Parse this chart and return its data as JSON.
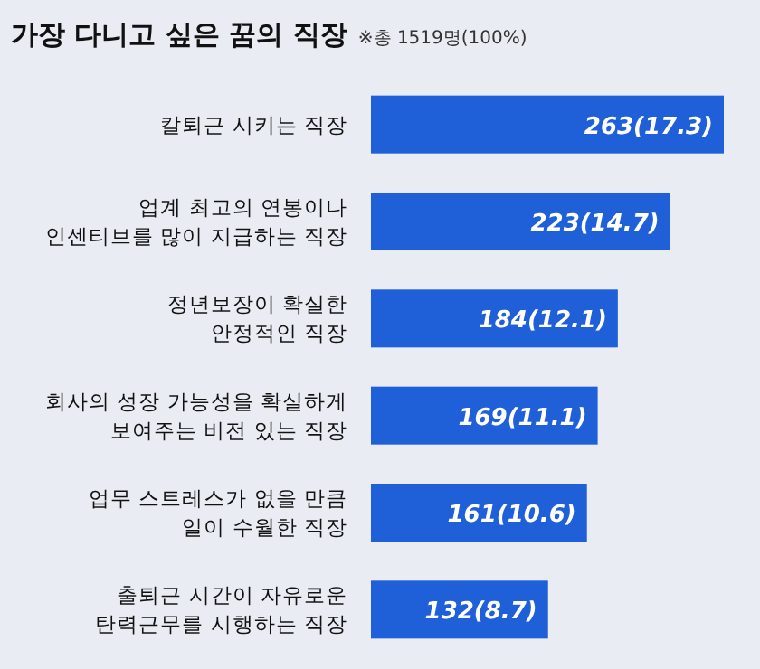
{
  "chart_data": {
    "type": "bar",
    "orientation": "horizontal",
    "title": "가장 다니고 싶은 꿈의 직장",
    "subtitle": "※총 1519명(100%)",
    "categories": [
      "칼퇴근 시키는 직장",
      "업계 최고의 연봉이나\n인센티브를 많이 지급하는 직장",
      "정년보장이 확실한\n안정적인 직장",
      "회사의 성장 가능성을 확실하게\n보여주는 비전 있는 직장",
      "업무 스트레스가 없을 만큼\n일이 수월한 직장",
      "출퇴근 시간이 자유로운\n탄력근무를 시행하는 직장"
    ],
    "values": [
      263,
      223,
      184,
      169,
      161,
      132
    ],
    "value_labels": [
      "263(17.3)",
      "223(14.7)",
      "184(12.1)",
      "169(11.1)",
      "161(10.6)",
      "132(8.7)"
    ],
    "color": "#1f5fd8"
  }
}
